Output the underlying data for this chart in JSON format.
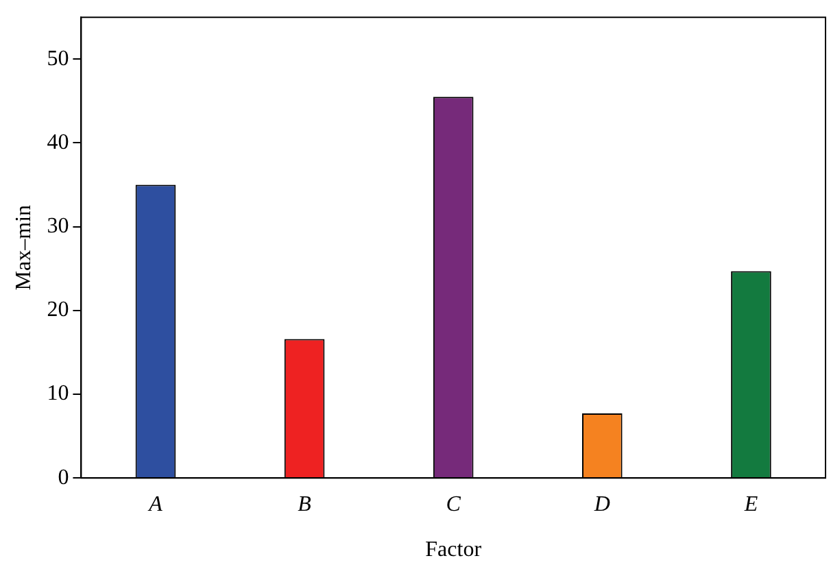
{
  "chart_data": {
    "type": "bar",
    "xlabel": "Factor",
    "ylabel": "Max–min",
    "categories": [
      "A",
      "B",
      "C",
      "D",
      "E"
    ],
    "values": [
      35.0,
      16.6,
      45.5,
      7.7,
      24.7
    ],
    "colors": [
      "#2e4fa0",
      "#ee2222",
      "#762a7a",
      "#f58220",
      "#137a3f"
    ],
    "ylim": [
      0,
      55
    ],
    "yticks": [
      0,
      10,
      20,
      30,
      40,
      50
    ],
    "grid": false,
    "legend": false
  }
}
